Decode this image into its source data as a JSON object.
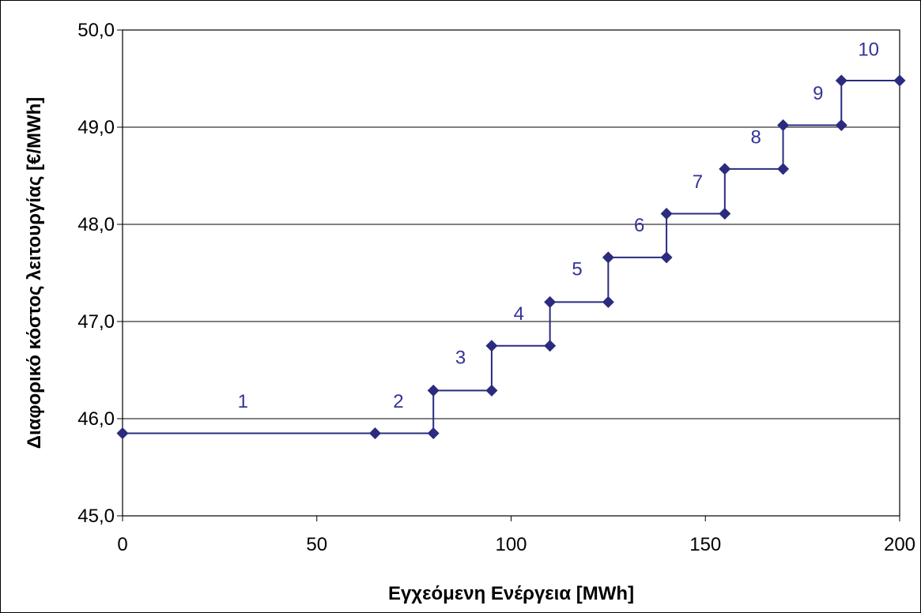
{
  "chart_data": {
    "type": "line",
    "title": "",
    "xlabel": "Εγχεόμενη Ενέργεια [MWh]",
    "ylabel": "Διαφορικό κόστος λειτουργίας [€/MWh]",
    "xlim": [
      0,
      200
    ],
    "ylim": [
      45.0,
      50.0
    ],
    "x_ticks": [
      0,
      50,
      100,
      150,
      200
    ],
    "x_tick_labels": [
      "0",
      "50",
      "100",
      "150",
      "200"
    ],
    "y_ticks": [
      45.0,
      46.0,
      47.0,
      48.0,
      49.0,
      50.0
    ],
    "y_tick_labels": [
      "45,0",
      "46,0",
      "47,0",
      "48,0",
      "49,0",
      "50,0"
    ],
    "grid": "horizontal",
    "legend": "none",
    "series_color": "#2b2b7f",
    "label_color": "#333399",
    "series": [
      {
        "x": [
          0,
          65,
          80,
          80,
          95,
          95,
          110,
          110,
          125,
          125,
          140,
          140,
          155,
          155,
          170,
          170,
          185,
          185,
          200
        ],
        "y": [
          45.85,
          45.85,
          45.85,
          46.29,
          46.29,
          46.75,
          46.75,
          47.2,
          47.2,
          47.66,
          47.66,
          48.11,
          48.11,
          48.57,
          48.57,
          49.02,
          49.02,
          49.48,
          49.48
        ]
      }
    ],
    "annotations": [
      {
        "text": "1",
        "x": 31,
        "y": 46.18
      },
      {
        "text": "2",
        "x": 71,
        "y": 46.18
      },
      {
        "text": "3",
        "x": 87,
        "y": 46.63
      },
      {
        "text": "4",
        "x": 102,
        "y": 47.08
      },
      {
        "text": "5",
        "x": 117,
        "y": 47.54
      },
      {
        "text": "6",
        "x": 133,
        "y": 47.99
      },
      {
        "text": "7",
        "x": 148,
        "y": 48.44
      },
      {
        "text": "8",
        "x": 163,
        "y": 48.9
      },
      {
        "text": "9",
        "x": 179,
        "y": 49.35
      },
      {
        "text": "10",
        "x": 192,
        "y": 49.8
      }
    ]
  }
}
